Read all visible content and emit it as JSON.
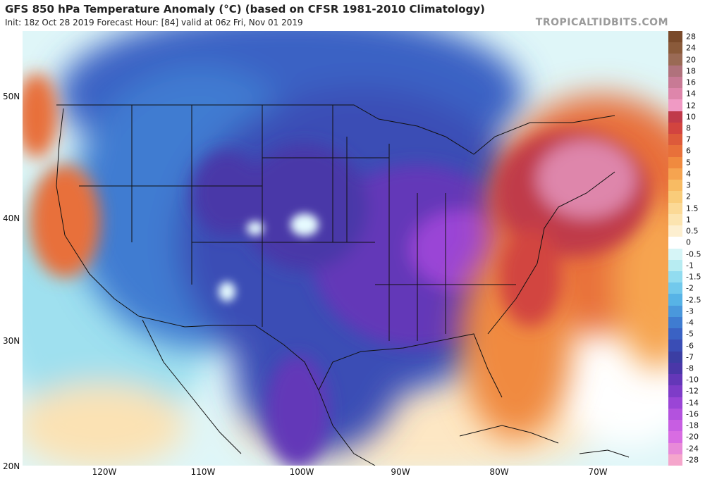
{
  "header": {
    "title": "GFS 850 hPa Temperature Anomaly (°C) (based on CFSR 1981-2010 Climatology)",
    "subtitle": "Init: 18z Oct 28 2019   Forecast Hour: [84]   valid at 06z Fri, Nov 01 2019",
    "brand": "TROPICALTIDBITS.COM"
  },
  "map": {
    "lat_labels": [
      "50N",
      "40N",
      "30N",
      "20N"
    ],
    "lon_labels": [
      "120W",
      "110W",
      "100W",
      "90W",
      "80W",
      "70W"
    ]
  },
  "colorbar": {
    "labels": [
      "28",
      "24",
      "20",
      "18",
      "16",
      "14",
      "12",
      "10",
      "8",
      "7",
      "6",
      "5",
      "4",
      "3",
      "2",
      "1.5",
      "1",
      "0.5",
      "0",
      "-0.5",
      "-1",
      "-1.5",
      "-2",
      "-2.5",
      "-3",
      "-4",
      "-5",
      "-6",
      "-7",
      "-8",
      "-10",
      "-12",
      "-14",
      "-16",
      "-18",
      "-20",
      "-24",
      "-28"
    ],
    "colors": [
      "#7a4a2a",
      "#8a5a3a",
      "#9a6a55",
      "#b0727c",
      "#c87a95",
      "#de86ab",
      "#f09ac4",
      "#c03a4a",
      "#d2443f",
      "#dd5a3a",
      "#e8703a",
      "#f08a3f",
      "#f6a450",
      "#f8bb63",
      "#f9cc7a",
      "#fbd996",
      "#fce4b0",
      "#fdefd0",
      "#ffffff",
      "#d6f5f7",
      "#b7ecf2",
      "#92dcf0",
      "#72c9ec",
      "#57b3e6",
      "#4a98dc",
      "#3f7cd1",
      "#3a62c4",
      "#3a4db5",
      "#3b3ea3",
      "#4a37a8",
      "#6437b8",
      "#7e3cc8",
      "#9a45d6",
      "#b352de",
      "#c75ee2",
      "#d86ce2",
      "#e88ad8",
      "#f5a6cc"
    ]
  }
}
